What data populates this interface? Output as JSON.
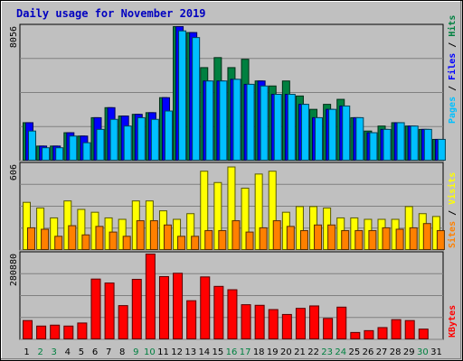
{
  "chart_data": {
    "type": "bar",
    "title": "Daily usage for November 2019",
    "days": [
      "1",
      "2",
      "3",
      "4",
      "5",
      "6",
      "7",
      "8",
      "9",
      "10",
      "11",
      "12",
      "13",
      "14",
      "15",
      "16",
      "17",
      "18",
      "19",
      "20",
      "21",
      "22",
      "23",
      "24",
      "25",
      "26",
      "27",
      "28",
      "29",
      "30",
      "31"
    ],
    "weekend_days": [
      "2",
      "3",
      "9",
      "10",
      "16",
      "17",
      "23",
      "24",
      "30"
    ],
    "panels": [
      {
        "key": "hits",
        "max_label": "8056",
        "max": 8056,
        "series": [
          {
            "name": "Hits",
            "color": "#008040",
            "values": [
              2300,
              900,
              900,
              1700,
              1500,
              2600,
              3200,
              2700,
              2800,
              2900,
              3800,
              8056,
              7700,
              5600,
              6200,
              5600,
              6100,
              4800,
              4500,
              4800,
              3900,
              3100,
              3400,
              3700,
              2600,
              1800,
              2100,
              2300,
              2100,
              1900,
              1300
            ]
          },
          {
            "name": "Files",
            "color": "#0000ff",
            "values": [
              2300,
              900,
              900,
              1700,
              1500,
              2600,
              3200,
              2700,
              2800,
              2900,
              3800,
              8056,
              7700,
              4800,
              4800,
              4900,
              4600,
              4800,
              4000,
              4000,
              3400,
              2600,
              3100,
              3300,
              2600,
              1700,
              1900,
              2300,
              2100,
              1900,
              1300
            ]
          },
          {
            "name": "Pages",
            "color": "#00c0ff",
            "values": [
              1800,
              800,
              800,
              1500,
              1100,
              1900,
              2500,
              2100,
              2600,
              2500,
              3000,
              7800,
              7400,
              4800,
              4800,
              4900,
              4600,
              4500,
              4000,
              4000,
              3400,
              2600,
              3100,
              3300,
              2600,
              1700,
              1900,
              2300,
              2100,
              1900,
              1300
            ]
          }
        ]
      },
      {
        "key": "visits",
        "max_label": "606",
        "max": 606,
        "series": [
          {
            "name": "Visits",
            "color": "#ffff00",
            "values": [
              340,
              300,
              230,
              350,
              290,
              270,
              230,
              220,
              350,
              350,
              280,
              220,
              260,
              560,
              480,
              590,
              440,
              540,
              560,
              270,
              310,
              310,
              300,
              230,
              230,
              220,
              220,
              220,
              310,
              260,
              240
            ]
          },
          {
            "name": "Sites",
            "color": "#ff8000",
            "values": [
              160,
              150,
              100,
              175,
              110,
              170,
              130,
              100,
              210,
              210,
              180,
              100,
              100,
              140,
              140,
              210,
              130,
              160,
              210,
              170,
              140,
              180,
              180,
              140,
              140,
              140,
              160,
              150,
              160,
              190,
              140
            ]
          }
        ]
      },
      {
        "key": "kbytes",
        "max_label": "280880",
        "max": 280880,
        "series": [
          {
            "name": "KBytes",
            "color": "#ff0000",
            "values": [
              63000,
              45000,
              48000,
              45000,
              55000,
              199000,
              186000,
              112000,
              198000,
              280880,
              207000,
              218000,
              128000,
              206000,
              175000,
              164000,
              115000,
              113000,
              99000,
              83000,
              103000,
              111000,
              70000,
              107000,
              24000,
              30000,
              40000,
              66000,
              63000,
              35000,
              0
            ]
          }
        ]
      }
    ],
    "axis_labels": {
      "hits_panel": [
        "Pages",
        "Files",
        "Hits"
      ],
      "visits_panel": [
        "Sites",
        "Visits"
      ],
      "kbytes_panel": [
        "KBytes"
      ]
    },
    "grid": true
  }
}
